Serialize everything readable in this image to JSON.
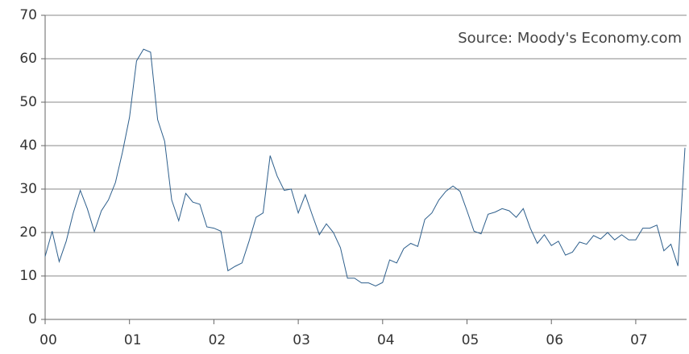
{
  "chart_data": {
    "type": "line",
    "annotation": "Source: Moody's Economy.com",
    "categories": [
      "00",
      null,
      null,
      null,
      null,
      null,
      null,
      null,
      null,
      null,
      null,
      null,
      "01",
      null,
      null,
      null,
      null,
      null,
      null,
      null,
      null,
      null,
      null,
      null,
      "02",
      null,
      null,
      null,
      null,
      null,
      null,
      null,
      null,
      null,
      null,
      null,
      "03",
      null,
      null,
      null,
      null,
      null,
      null,
      null,
      null,
      null,
      null,
      null,
      "04",
      null,
      null,
      null,
      null,
      null,
      null,
      null,
      null,
      null,
      null,
      null,
      "05",
      null,
      null,
      null,
      null,
      null,
      null,
      null,
      null,
      null,
      null,
      null,
      "06",
      null,
      null,
      null,
      null,
      null,
      null,
      null,
      null,
      null,
      null,
      null,
      "07",
      null,
      null,
      null,
      null,
      null,
      null,
      null
    ],
    "values": [
      14.5,
      20.3,
      13.3,
      18,
      24.5,
      29.7,
      25.5,
      20.2,
      25,
      27.5,
      31.5,
      38.5,
      46.5,
      59.5,
      62.2,
      61.5,
      46,
      41,
      27.5,
      22.7,
      29,
      27,
      26.5,
      21.3,
      21,
      20.3,
      11.2,
      12.2,
      13,
      18,
      23.5,
      24.5,
      37.7,
      33,
      29.7,
      30,
      24.5,
      28.7,
      24,
      19.5,
      22,
      20,
      16.5,
      9.5,
      9.5,
      8.4,
      8.4,
      7.7,
      8.5,
      13.7,
      13,
      16.3,
      17.5,
      16.8,
      23,
      24.5,
      27.5,
      29.5,
      30.7,
      29.5,
      25,
      20.3,
      19.7,
      24.2,
      24.7,
      25.5,
      25,
      23.5,
      25.5,
      21,
      17.5,
      19.5,
      17,
      18,
      14.8,
      15.5,
      17.8,
      17.3,
      19.3,
      18.5,
      20,
      18.3,
      19.5,
      18.3,
      18.3,
      21,
      21,
      21.7,
      15.8,
      17.3,
      12.3,
      39.5
    ],
    "color": "#2e5f8c",
    "ylim": [
      0,
      70
    ],
    "yticks": [
      0,
      10,
      20,
      30,
      40,
      50,
      60,
      70
    ],
    "grid": true
  }
}
